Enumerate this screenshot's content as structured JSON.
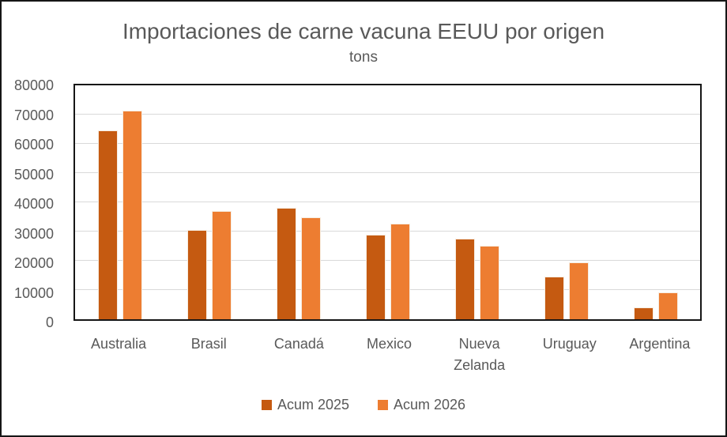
{
  "chart": {
    "title": "Importaciones de carne vacuna EEUU por origen",
    "subtitle": "tons"
  },
  "chart_data": {
    "type": "bar",
    "title": "Importaciones de carne vacuna EEUU por origen",
    "subtitle": "tons",
    "categories": [
      "Australia",
      "Brasil",
      "Canadá",
      "Mexico",
      "Nueva Zelanda",
      "Uruguay",
      "Argentina"
    ],
    "series": [
      {
        "name": "Acum 2025",
        "color": "#C55A11",
        "values": [
          64700,
          30600,
          38100,
          28900,
          27500,
          14700,
          4000
        ]
      },
      {
        "name": "Acum 2026",
        "color": "#ED7D31",
        "values": [
          71300,
          37000,
          34800,
          32600,
          25200,
          19500,
          9300
        ]
      }
    ],
    "xlabel": "",
    "ylabel": "",
    "ylim": [
      0,
      80000
    ],
    "ytick_step": 10000,
    "yticks": [
      0,
      10000,
      20000,
      30000,
      40000,
      50000,
      60000,
      70000,
      80000
    ],
    "grid": true,
    "legend_position": "bottom"
  },
  "colors": {
    "text": "#595959",
    "gridline": "#d9d9d9",
    "plot_border": "#161616",
    "series_2025": "#C55A11",
    "series_2026": "#ED7D31"
  }
}
